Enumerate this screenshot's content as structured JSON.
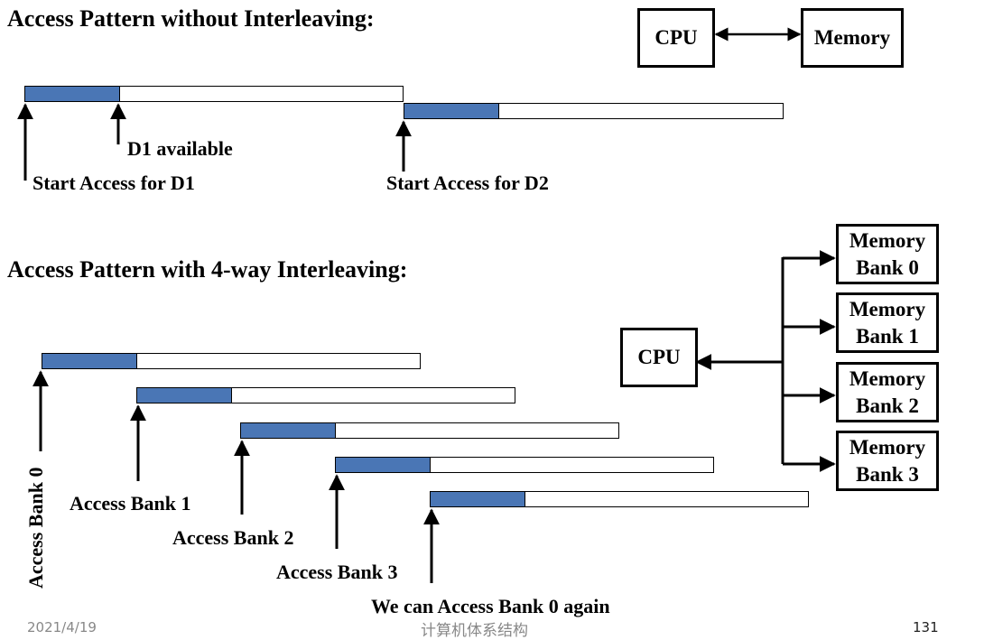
{
  "top": {
    "title": "Access Pattern without Interleaving:",
    "cpu": "CPU",
    "memory": "Memory",
    "d1_available": "D1 available",
    "start_d1": "Start Access for D1",
    "start_d2": "Start Access for D2"
  },
  "bottom": {
    "title": "Access Pattern with 4-way Interleaving:",
    "cpu": "CPU",
    "banks": [
      {
        "line1": "Memory",
        "line2": "Bank 0"
      },
      {
        "line1": "Memory",
        "line2": "Bank 1"
      },
      {
        "line1": "Memory",
        "line2": "Bank 2"
      },
      {
        "line1": "Memory",
        "line2": "Bank 3"
      }
    ],
    "access_bank0": "Access Bank 0",
    "access_bank1": "Access Bank 1",
    "access_bank2": "Access Bank 2",
    "access_bank3": "Access Bank 3",
    "again": "We can Access Bank 0 again"
  },
  "footer": {
    "date": "2021/4/19",
    "course": "计算机体系结构",
    "page": "131"
  },
  "colors": {
    "access_fill": "#4a76b5"
  }
}
